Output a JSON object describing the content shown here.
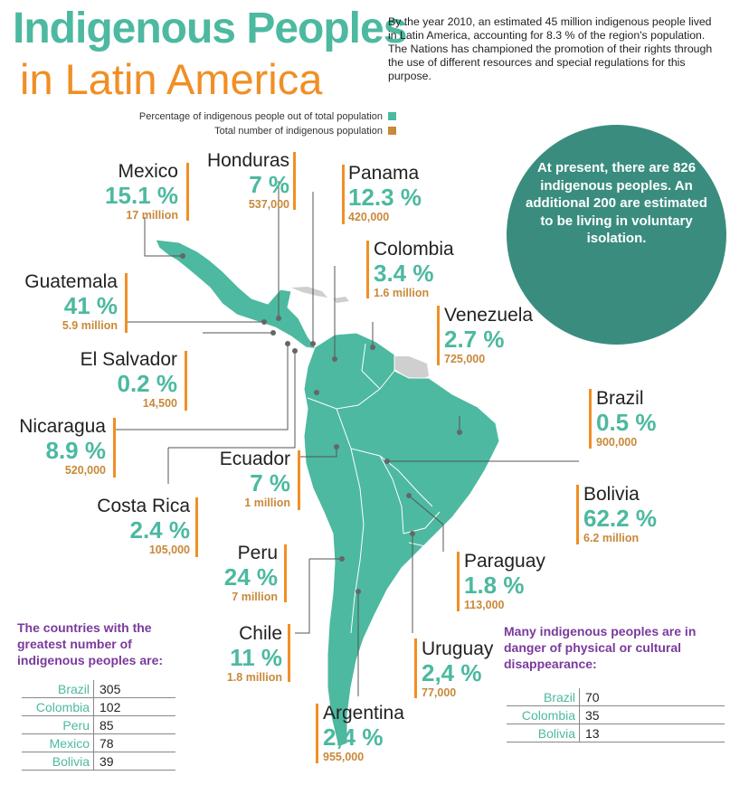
{
  "title_line1": "Indigenous Peoples",
  "title_line2": "in Latin America",
  "intro": "By the year 2010, an estimated 45 million indigenous people lived in Latin America, accounting for 8.3 % of the region's population. The Nations has championed the promotion of their rights through the use of different resources and special regulations for this purpose.",
  "legend": {
    "pct_label": "Percentage of indigenous people out of total population",
    "num_label": "Total number of indigenous population",
    "pct_color": "#4cb9a0",
    "num_color": "#c8893a"
  },
  "callout": "At present, there are 826 indigenous peoples. An additional 200 are estimated to be living in voluntary isolation.",
  "countries": {
    "mexico": {
      "name": "Mexico",
      "pct": "15.1 %",
      "num": "17 million"
    },
    "honduras": {
      "name": "Honduras",
      "pct": "7 %",
      "num": "537,000"
    },
    "panama": {
      "name": "Panama",
      "pct": "12.3 %",
      "num": "420,000"
    },
    "guatemala": {
      "name": "Guatemala",
      "pct": "41 %",
      "num": "5.9 million"
    },
    "colombia": {
      "name": "Colombia",
      "pct": "3.4 %",
      "num": "1.6 million"
    },
    "venezuela": {
      "name": "Venezuela",
      "pct": "2.7 %",
      "num": "725,000"
    },
    "el_salvador": {
      "name": "El Salvador",
      "pct": "0.2 %",
      "num": "14,500"
    },
    "brazil": {
      "name": "Brazil",
      "pct": "0.5 %",
      "num": "900,000"
    },
    "nicaragua": {
      "name": "Nicaragua",
      "pct": "8.9 %",
      "num": "520,000"
    },
    "ecuador": {
      "name": "Ecuador",
      "pct": "7 %",
      "num": "1 million"
    },
    "bolivia": {
      "name": "Bolivia",
      "pct": "62.2 %",
      "num": "6.2 million"
    },
    "costa_rica": {
      "name": "Costa Rica",
      "pct": "2.4 %",
      "num": "105,000"
    },
    "peru": {
      "name": "Peru",
      "pct": "24 %",
      "num": "7 million"
    },
    "paraguay": {
      "name": "Paraguay",
      "pct": "1.8 %",
      "num": "113,000"
    },
    "chile": {
      "name": "Chile",
      "pct": "11 %",
      "num": "1.8 million"
    },
    "uruguay": {
      "name": "Uruguay",
      "pct": "2,4 %",
      "num": "77,000"
    },
    "argentina": {
      "name": "Argentina",
      "pct": "2,4 %",
      "num": "955,000"
    }
  },
  "greatest": {
    "heading": "The countries with the greatest number of indigenous peoples are:",
    "rows": [
      {
        "country": "Brazil",
        "value": "305"
      },
      {
        "country": "Colombia",
        "value": "102"
      },
      {
        "country": "Peru",
        "value": "85"
      },
      {
        "country": "Mexico",
        "value": "78"
      },
      {
        "country": "Bolivia",
        "value": "39"
      }
    ]
  },
  "danger": {
    "heading": "Many indigenous peoples are in danger of physical or cultural disappearance:",
    "rows": [
      {
        "country": "Brazil",
        "value": "70"
      },
      {
        "country": "Colombia",
        "value": "35"
      },
      {
        "country": "Bolivia",
        "value": "13"
      }
    ]
  }
}
